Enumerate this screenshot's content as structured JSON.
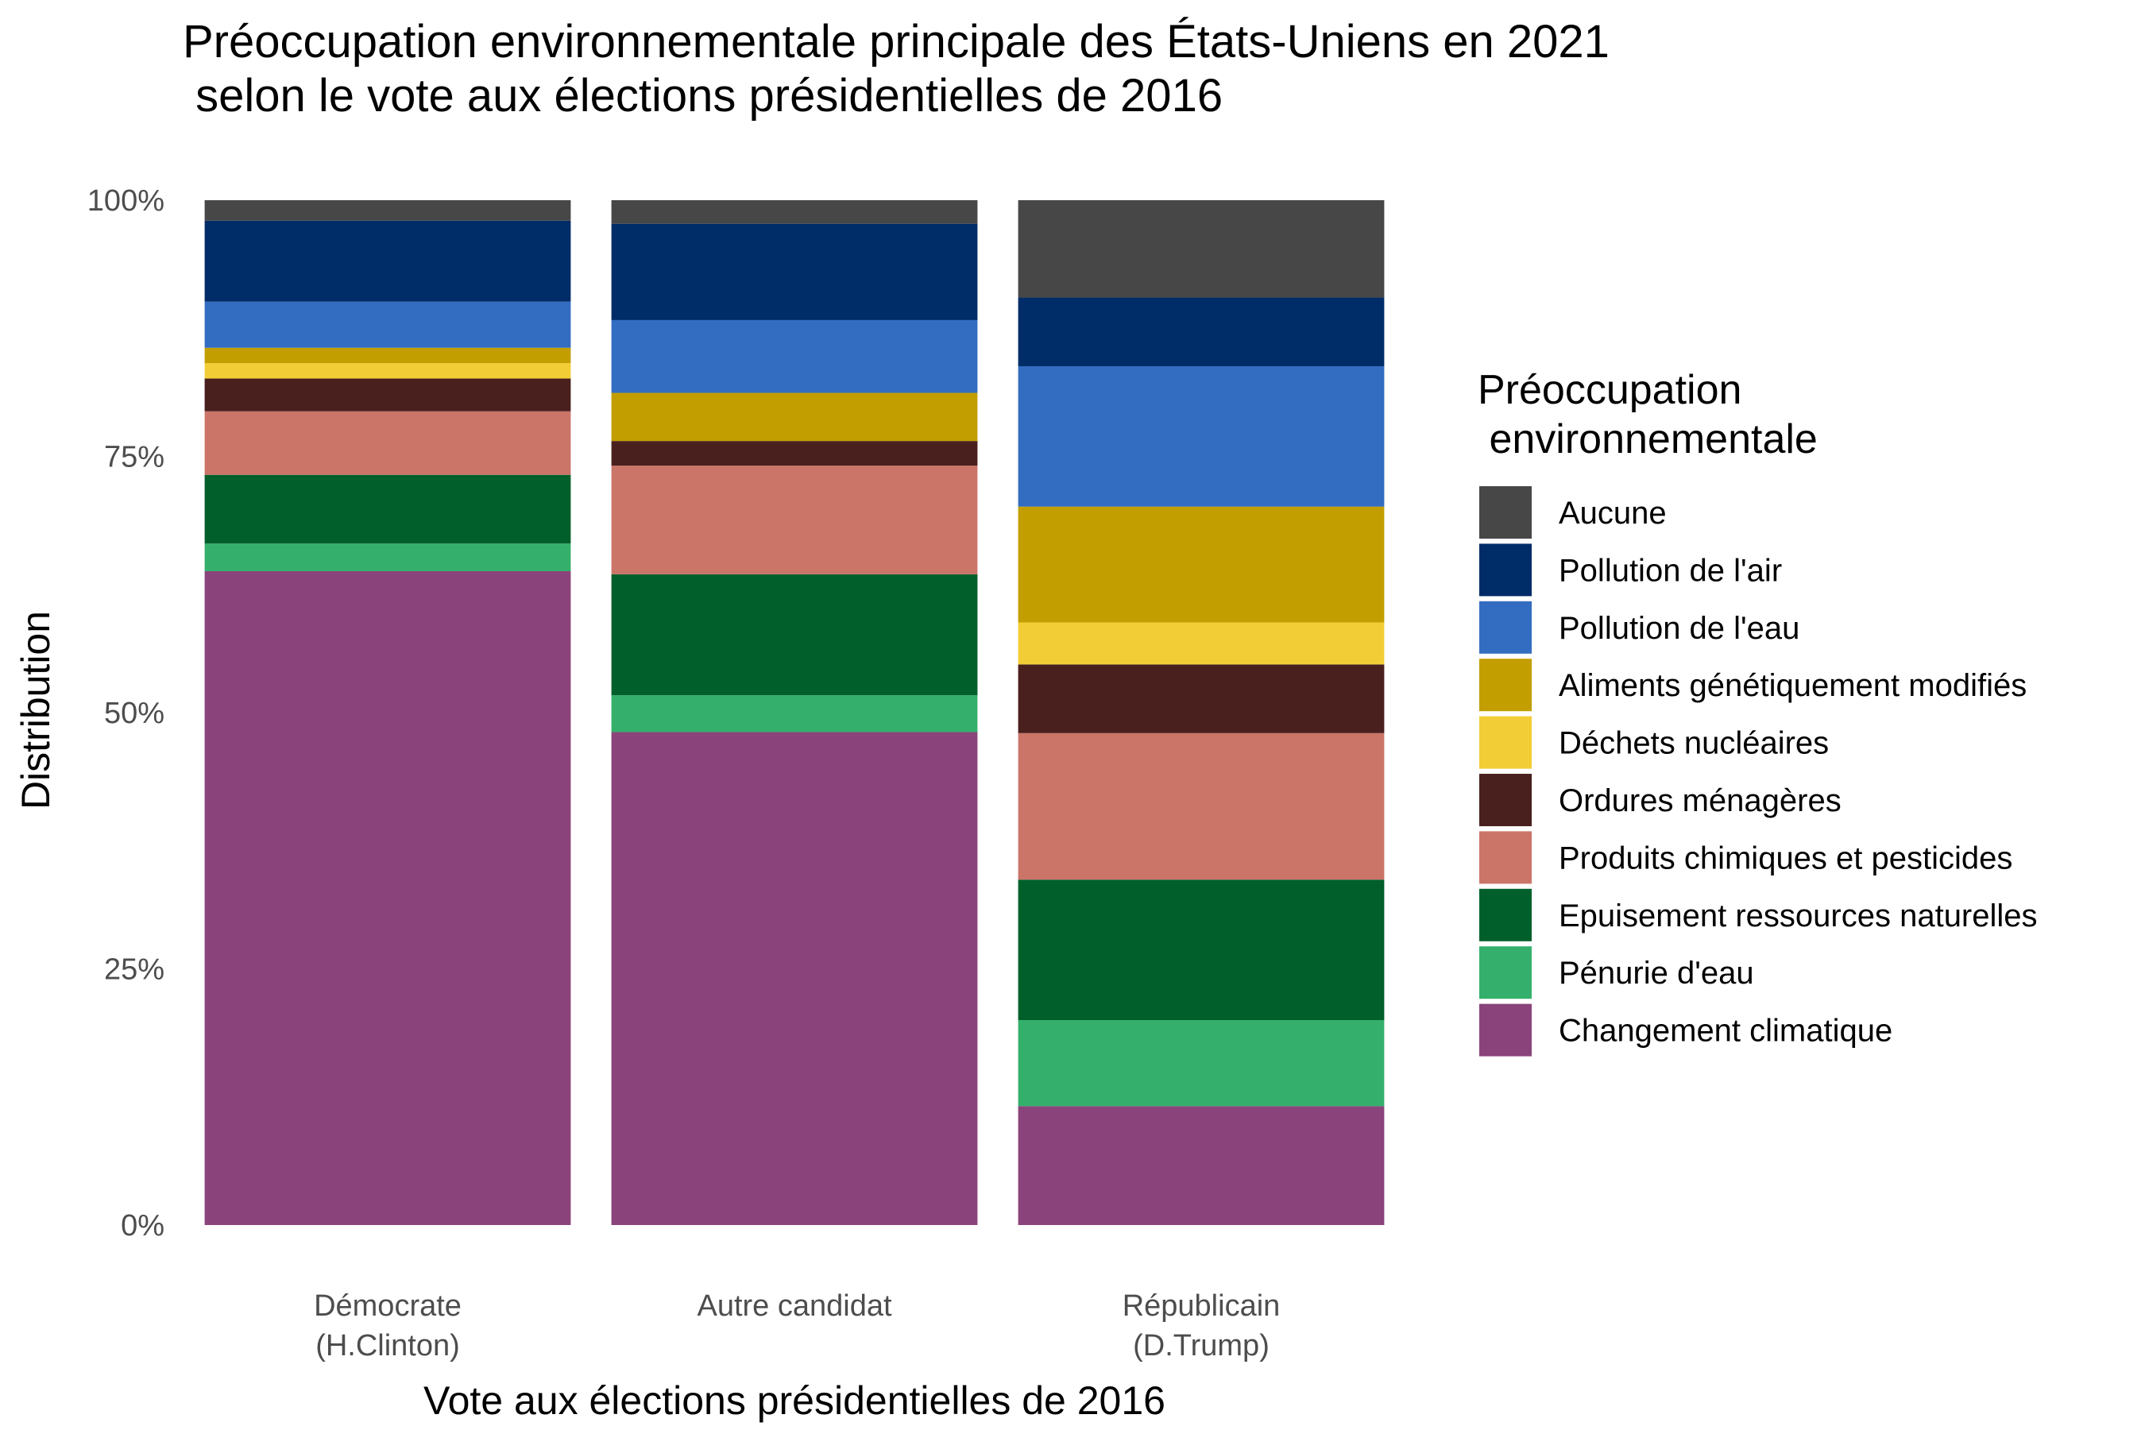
{
  "chart_data": {
    "type": "bar",
    "stacked": true,
    "normalized": true,
    "title": [
      "Préoccupation environnementale principale des États-Uniens en 2021",
      " selon le vote aux élections présidentielles de 2016"
    ],
    "xlabel": "Vote aux élections présidentielles de 2016",
    "ylabel": "Distribution",
    "ylim": [
      0,
      1
    ],
    "yticks": [
      0,
      0.25,
      0.5,
      0.75,
      1
    ],
    "ytick_labels": [
      "0%",
      "25%",
      "50%",
      "75%",
      "100%"
    ],
    "grid": false,
    "legend_position": "right",
    "legend_title": [
      "Préoccupation",
      " environnementale"
    ],
    "categories": [
      [
        "Démocrate",
        " (H.Clinton)"
      ],
      [
        "Autre candidat"
      ],
      [
        "Républicain",
        " (D.Trump)"
      ]
    ],
    "series": [
      {
        "name": "Changement climatique",
        "color": "#8b447b",
        "values": [
          0.638,
          0.481,
          0.116
        ]
      },
      {
        "name": "Pénurie d'eau",
        "color": "#35b06c",
        "values": [
          0.027,
          0.036,
          0.084
        ]
      },
      {
        "name": "Epuisement ressources naturelles",
        "color": "#005f2a",
        "values": [
          0.067,
          0.118,
          0.137
        ]
      },
      {
        "name": "Produits chimiques et pesticides",
        "color": "#cb7468",
        "values": [
          0.062,
          0.106,
          0.143
        ]
      },
      {
        "name": "Ordures ménagères",
        "color": "#4a201e",
        "values": [
          0.032,
          0.024,
          0.067
        ]
      },
      {
        "name": "Déchets nucléaires",
        "color": "#f3cd35",
        "values": [
          0.015,
          0.0,
          0.041
        ]
      },
      {
        "name": "Aliments génétiquement modifiés",
        "color": "#c39e00",
        "values": [
          0.015,
          0.047,
          0.113
        ]
      },
      {
        "name": "Pollution de l'eau",
        "color": "#336dc1",
        "values": [
          0.045,
          0.071,
          0.137
        ]
      },
      {
        "name": "Pollution de l'air",
        "color": "#002c67",
        "values": [
          0.079,
          0.094,
          0.067
        ]
      },
      {
        "name": "Aucune",
        "color": "#474747",
        "values": [
          0.02,
          0.023,
          0.095
        ]
      }
    ]
  }
}
